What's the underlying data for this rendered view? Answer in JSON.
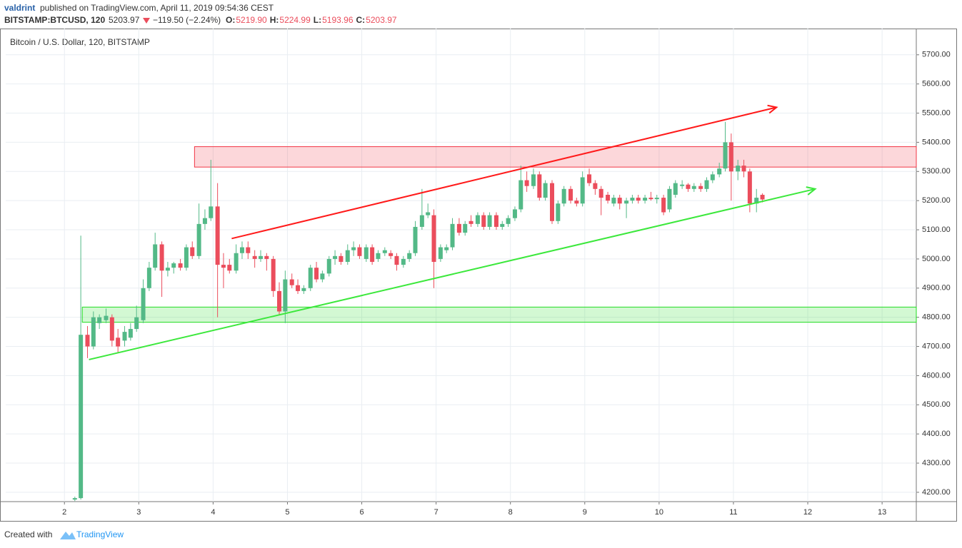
{
  "header": {
    "author": "valdrint",
    "published": "published on TradingView.com, April 11, 2019 09:54:36 CEST",
    "symbol": "BITSTAMP:BTCUSD, 120",
    "last": "5203.97",
    "change": "−119.50 (−2.24%)",
    "ohlc": [
      {
        "label": "O:",
        "value": "5219.90"
      },
      {
        "label": "H:",
        "value": "5224.99"
      },
      {
        "label": "L:",
        "value": "5193.96"
      },
      {
        "label": "C:",
        "value": "5203.97"
      }
    ]
  },
  "footer": {
    "text": "Created with",
    "brand": "TradingView"
  },
  "chart_data": {
    "type": "candlestick",
    "title": "Bitcoin / U.S. Dollar, 120, BITSTAMP",
    "up_color": "#53b987",
    "down_color": "#eb4d5c",
    "grid": true,
    "xlim": [
      1.21,
      13.46
    ],
    "xticks": [
      2,
      3,
      4,
      5,
      6,
      7,
      8,
      9,
      10,
      11,
      12,
      13
    ],
    "ylim": [
      4168,
      5790
    ],
    "yticks": [
      {
        "value": 4200,
        "label": "4200.00"
      },
      {
        "value": 4300,
        "label": "4300.00"
      },
      {
        "value": 4400,
        "label": "4400.00"
      },
      {
        "value": 4500,
        "label": "4500.00"
      },
      {
        "value": 4600,
        "label": "4600.00"
      },
      {
        "value": 4700,
        "label": "4700.00"
      },
      {
        "value": 4800,
        "label": "4800.00"
      },
      {
        "value": 4900,
        "label": "4900.00"
      },
      {
        "value": 5000,
        "label": "5000.00"
      },
      {
        "value": 5100,
        "label": "5100.00"
      },
      {
        "value": 5200,
        "label": "5200.00"
      },
      {
        "value": 5300,
        "label": "5300.00"
      },
      {
        "value": 5400,
        "label": "5400.00"
      },
      {
        "value": 5500,
        "label": "5500.00"
      },
      {
        "value": 5600,
        "label": "5600.00"
      },
      {
        "value": 5700,
        "label": "5700.00"
      }
    ],
    "x": [
      2.14,
      2.22,
      2.31,
      2.39,
      2.47,
      2.56,
      2.64,
      2.72,
      2.81,
      2.89,
      2.97,
      3.06,
      3.14,
      3.22,
      3.31,
      3.39,
      3.47,
      3.56,
      3.64,
      3.72,
      3.81,
      3.89,
      3.97,
      4.06,
      4.14,
      4.22,
      4.31,
      4.39,
      4.47,
      4.56,
      4.64,
      4.72,
      4.81,
      4.89,
      4.97,
      5.06,
      5.14,
      5.22,
      5.31,
      5.39,
      5.47,
      5.56,
      5.64,
      5.72,
      5.81,
      5.89,
      5.97,
      6.06,
      6.14,
      6.22,
      6.31,
      6.39,
      6.47,
      6.56,
      6.64,
      6.72,
      6.81,
      6.89,
      6.97,
      7.06,
      7.14,
      7.22,
      7.31,
      7.39,
      7.47,
      7.56,
      7.64,
      7.72,
      7.81,
      7.89,
      7.97,
      8.06,
      8.14,
      8.22,
      8.31,
      8.39,
      8.47,
      8.56,
      8.64,
      8.72,
      8.81,
      8.89,
      8.97,
      9.06,
      9.14,
      9.22,
      9.31,
      9.39,
      9.47,
      9.56,
      9.64,
      9.72,
      9.81,
      9.89,
      9.97,
      10.06,
      10.14,
      10.22,
      10.31,
      10.39,
      10.47,
      10.56,
      10.64,
      10.72,
      10.81,
      10.89,
      10.97,
      11.06,
      11.14,
      11.22,
      11.31,
      11.39
    ],
    "open": [
      4175,
      4180,
      4740,
      4700,
      4780,
      4790,
      4800,
      4730,
      4720,
      4730,
      4760,
      4790,
      4900,
      4970,
      5050,
      4960,
      4970,
      4985,
      4970,
      5040,
      5010,
      5120,
      5140,
      5180,
      4980,
      4980,
      4960,
      5020,
      5040,
      5010,
      5000,
      5010,
      5000,
      4890,
      4820,
      4930,
      4910,
      4890,
      4900,
      4970,
      4930,
      4950,
      5000,
      5010,
      4990,
      5030,
      5040,
      5000,
      5040,
      5000,
      5020,
      5020,
      5010,
      4980,
      5000,
      5020,
      5110,
      5150,
      5150,
      5000,
      5030,
      5040,
      5120,
      5090,
      5130,
      5120,
      5150,
      5110,
      5150,
      5110,
      5120,
      5140,
      5170,
      5270,
      5250,
      5290,
      5210,
      5260,
      5130,
      5190,
      5240,
      5200,
      5190,
      5290,
      5260,
      5240,
      5220,
      5190,
      5210,
      5190,
      5200,
      5210,
      5200,
      5210,
      5205,
      5210,
      5170,
      5220,
      5250,
      5255,
      5240,
      5250,
      5240,
      5270,
      5290,
      5310,
      5400,
      5300,
      5320,
      5300,
      5190,
      5219.9
    ],
    "high": [
      4185,
      5080,
      4770,
      4820,
      4810,
      4830,
      4810,
      4760,
      4770,
      4780,
      4840,
      4930,
      4990,
      5090,
      5060,
      4990,
      4990,
      5000,
      5050,
      5060,
      5190,
      5170,
      5340,
      5260,
      5020,
      5000,
      5050,
      5060,
      5060,
      5030,
      5030,
      5020,
      5010,
      4920,
      4960,
      4950,
      4930,
      4910,
      4980,
      4990,
      4960,
      5010,
      5030,
      5020,
      5050,
      5060,
      5050,
      5050,
      5050,
      5030,
      5040,
      5030,
      5020,
      5010,
      5030,
      5130,
      5240,
      5190,
      5170,
      5050,
      5050,
      5140,
      5140,
      5130,
      5150,
      5160,
      5160,
      5160,
      5160,
      5130,
      5150,
      5180,
      5320,
      5300,
      5310,
      5300,
      5270,
      5270,
      5200,
      5250,
      5250,
      5210,
      5300,
      5310,
      5270,
      5250,
      5230,
      5220,
      5220,
      5210,
      5220,
      5220,
      5220,
      5230,
      5220,
      5220,
      5250,
      5270,
      5270,
      5260,
      5260,
      5260,
      5280,
      5300,
      5330,
      5470,
      5430,
      5340,
      5340,
      5310,
      5240,
      5224.99
    ],
    "low": [
      4170,
      4175,
      4660,
      4690,
      4760,
      4780,
      4700,
      4680,
      4700,
      4720,
      4750,
      4780,
      4890,
      4960,
      4870,
      4940,
      4950,
      4960,
      4960,
      5000,
      5000,
      5100,
      5130,
      4800,
      4900,
      4950,
      4950,
      5000,
      5000,
      4970,
      4990,
      4960,
      4870,
      4810,
      4780,
      4900,
      4880,
      4880,
      4890,
      4920,
      4920,
      4940,
      4980,
      4980,
      4980,
      5010,
      5000,
      4990,
      4980,
      4990,
      5010,
      5000,
      4960,
      4970,
      4990,
      5010,
      5100,
      5140,
      4900,
      4990,
      5020,
      5030,
      5080,
      5080,
      5110,
      5110,
      5100,
      5100,
      5100,
      5100,
      5110,
      5130,
      5160,
      5230,
      5240,
      5200,
      5200,
      5120,
      5120,
      5180,
      5190,
      5180,
      5180,
      5250,
      5220,
      5150,
      5190,
      5180,
      5170,
      5140,
      5190,
      5190,
      5190,
      5200,
      5190,
      5150,
      5160,
      5210,
      5240,
      5230,
      5230,
      5230,
      5230,
      5260,
      5280,
      5300,
      5200,
      5270,
      5280,
      5160,
      5160,
      5193.96
    ],
    "close": [
      4180,
      4740,
      4700,
      4800,
      4800,
      4805,
      4720,
      4700,
      4750,
      4760,
      4800,
      4900,
      4970,
      5050,
      4960,
      4970,
      4985,
      4970,
      5040,
      5010,
      5120,
      5140,
      5180,
      4980,
      4970,
      4960,
      5020,
      5040,
      5020,
      5000,
      5010,
      5000,
      4890,
      4820,
      4930,
      4910,
      4890,
      4900,
      4970,
      4930,
      4950,
      5000,
      5010,
      4990,
      5030,
      5040,
      5010,
      5040,
      4990,
      5020,
      5030,
      5010,
      4980,
      5000,
      5020,
      5110,
      5150,
      5160,
      4990,
      5040,
      5040,
      5120,
      5090,
      5120,
      5120,
      5150,
      5110,
      5150,
      5110,
      5120,
      5140,
      5170,
      5270,
      5250,
      5290,
      5210,
      5260,
      5130,
      5190,
      5240,
      5200,
      5190,
      5280,
      5260,
      5240,
      5210,
      5200,
      5210,
      5190,
      5200,
      5210,
      5200,
      5210,
      5205,
      5210,
      5160,
      5240,
      5260,
      5255,
      5240,
      5250,
      5240,
      5270,
      5290,
      5310,
      5400,
      5300,
      5320,
      5300,
      5190,
      5210,
      5203.97
    ],
    "zones": [
      {
        "color": "#f23645",
        "x": 3.75,
        "y": [
          5315,
          5385
        ]
      },
      {
        "color": "#22dd22",
        "x": 2.24,
        "y": [
          4783,
          4835
        ]
      }
    ],
    "trendlines": [
      {
        "color": "#ff1a1a",
        "x": [
          4.25,
          11.58
        ],
        "y": [
          5070,
          5520
        ]
      },
      {
        "color": "#3ce83c",
        "x": [
          2.33,
          12.1
        ],
        "y": [
          4655,
          5240
        ]
      }
    ]
  }
}
